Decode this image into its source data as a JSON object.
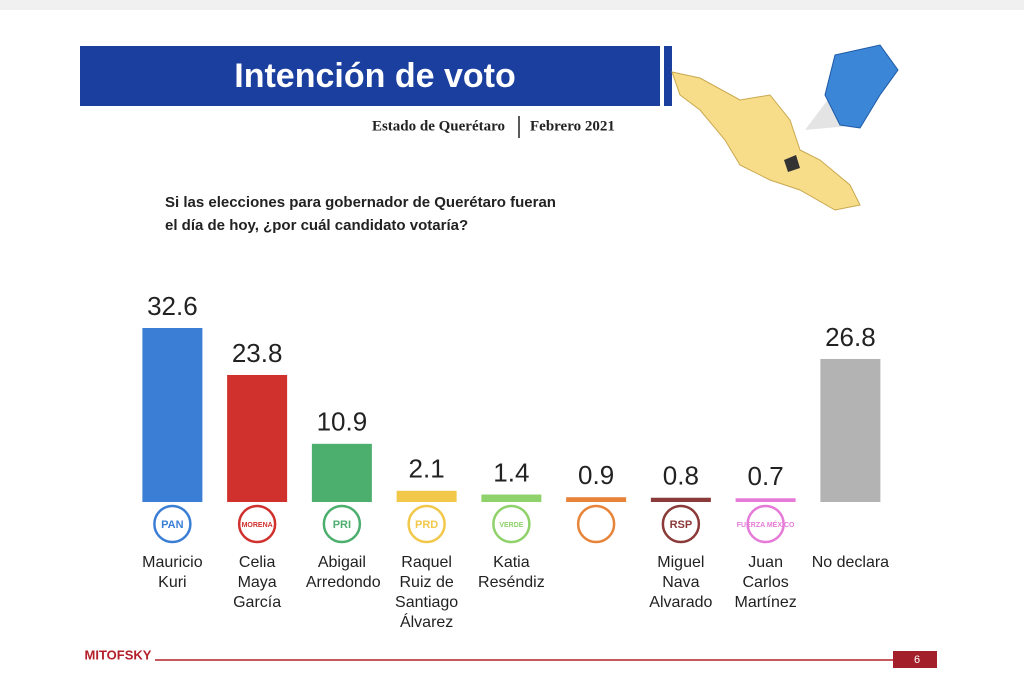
{
  "header": {
    "title": "Intención de voto",
    "state": "Estado de Querétaro",
    "date": "Febrero 2021"
  },
  "question": [
    "Si las elecciones para gobernador de Querétaro fueran",
    "el día de hoy, ¿por cuál candidato votaría?"
  ],
  "chart_data": {
    "type": "bar",
    "categories": [
      "Mauricio Kuri",
      "Celia Maya García",
      "Abigail Arredondo",
      "Raquel Ruiz de Santiago Álvarez",
      "Katia Reséndiz",
      null,
      "Miguel Nava Alvarado",
      "Juan Carlos Martínez",
      "No declara"
    ],
    "values": [
      32.6,
      23.8,
      10.9,
      2.1,
      1.4,
      0.9,
      0.8,
      0.7,
      26.8
    ],
    "colors": [
      "#3a7fd5",
      "#d0312d",
      "#4caf6e",
      "#f2c84b",
      "#8fd16a",
      "#e8843a",
      "#8b3a3a",
      "#e57ad8",
      "#b3b3b3"
    ]
  },
  "party_logos": [
    "PAN",
    "MORENA",
    "PRI",
    "PRD",
    "VERDE",
    null,
    "RSP",
    "FUERZA MÉXICO",
    null
  ],
  "footer": {
    "brand": "MITOFSKY",
    "page": "6"
  }
}
